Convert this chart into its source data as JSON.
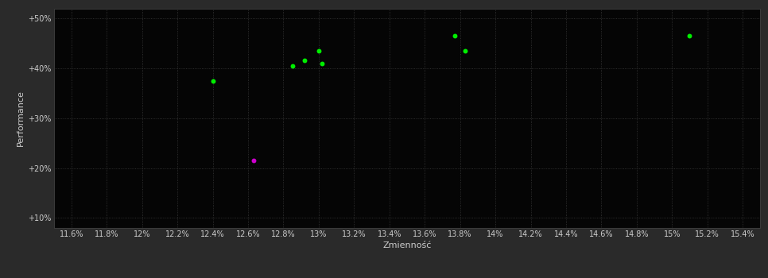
{
  "background_color": "#2a2a2a",
  "plot_bg_color": "#050505",
  "grid_color": "#3a3a3a",
  "text_color": "#cccccc",
  "green_points": [
    [
      12.4,
      37.5
    ],
    [
      12.85,
      40.5
    ],
    [
      12.92,
      41.5
    ],
    [
      13.0,
      43.5
    ],
    [
      13.02,
      41.0
    ],
    [
      13.77,
      46.5
    ],
    [
      13.83,
      43.5
    ],
    [
      15.1,
      46.5
    ]
  ],
  "magenta_points": [
    [
      12.63,
      21.5
    ]
  ],
  "green_color": "#00ee00",
  "magenta_color": "#cc00cc",
  "xlabel": "Zmienność",
  "ylabel": "Performance",
  "xlim": [
    11.5,
    15.5
  ],
  "ylim": [
    8,
    52
  ],
  "xtick_labels": [
    "11.6%",
    "11.8%",
    "12%",
    "12.2%",
    "12.4%",
    "12.6%",
    "12.8%",
    "13%",
    "13.2%",
    "13.4%",
    "13.6%",
    "13.8%",
    "14%",
    "14.2%",
    "14.4%",
    "14.6%",
    "14.8%",
    "15%",
    "15.2%",
    "15.4%"
  ],
  "xtick_values": [
    11.6,
    11.8,
    12.0,
    12.2,
    12.4,
    12.6,
    12.8,
    13.0,
    13.2,
    13.4,
    13.6,
    13.8,
    14.0,
    14.2,
    14.4,
    14.6,
    14.8,
    15.0,
    15.2,
    15.4
  ],
  "ytick_labels": [
    "+10%",
    "+20%",
    "+30%",
    "+40%",
    "+50%"
  ],
  "ytick_values": [
    10,
    20,
    30,
    40,
    50
  ],
  "marker_size": 18,
  "label_fontsize": 8,
  "tick_fontsize": 7
}
